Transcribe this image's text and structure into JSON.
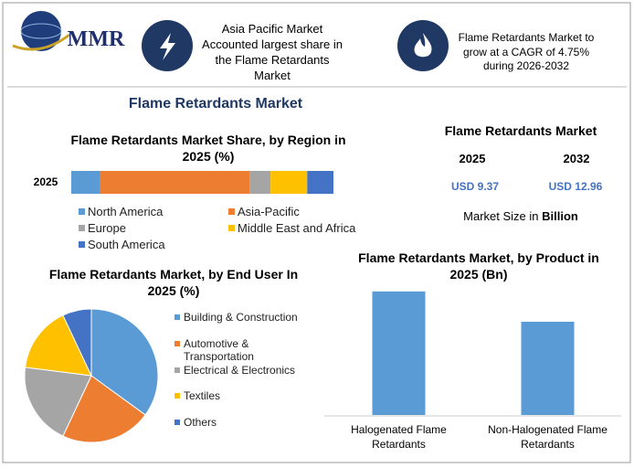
{
  "header": {
    "logo": "MMR",
    "info": [
      "Asia Pacific Market Accounted largest share in the Flame Retardants Market",
      "Flame Retardants Market to grow at a CAGR of 4.75% during 2026-2032"
    ],
    "title": "Flame Retardants Market"
  },
  "market_size": {
    "title": "Flame Retardants Market",
    "years": [
      "2025",
      "2032"
    ],
    "values": [
      "USD 9.37",
      "USD 12.96"
    ],
    "note": "Market Size in",
    "unit": "Billion"
  },
  "chart_data": [
    {
      "type": "stacked-bar",
      "title": "Flame Retardants Market Share, by Region in 2025 (%)",
      "categories": [
        "2025"
      ],
      "xlim": [
        0,
        100
      ],
      "series": [
        {
          "name": "North America",
          "color": "#5b9bd5",
          "values": [
            11
          ]
        },
        {
          "name": "Asia-Pacific",
          "color": "#ed7d31",
          "values": [
            57
          ]
        },
        {
          "name": "Europe",
          "color": "#a5a5a5",
          "values": [
            8
          ]
        },
        {
          "name": "Middle East and Africa",
          "color": "#ffc000",
          "values": [
            14
          ]
        },
        {
          "name": "South America",
          "color": "#4472c4",
          "values": [
            10
          ]
        }
      ]
    },
    {
      "type": "pie",
      "title": "Flame Retardants Market, by End User In 2025 (%)",
      "categories": [
        "Building & Construction",
        "Automotive & Transportation",
        "Electrical & Electronics",
        "Textiles",
        "Others"
      ],
      "values": [
        35,
        22,
        20,
        16,
        7
      ],
      "colors": [
        "#5b9bd5",
        "#ed7d31",
        "#a5a5a5",
        "#ffc000",
        "#4472c4"
      ]
    },
    {
      "type": "bar",
      "title": "Flame Retardants Market, by Product in 2025 (Bn)",
      "categories": [
        "Halogenated Flame Retardants",
        "Non-Halogenated Flame Retardants"
      ],
      "values": [
        5.3,
        4.0
      ],
      "color": "#5b9bd5",
      "ylim": [
        0,
        6
      ]
    }
  ]
}
